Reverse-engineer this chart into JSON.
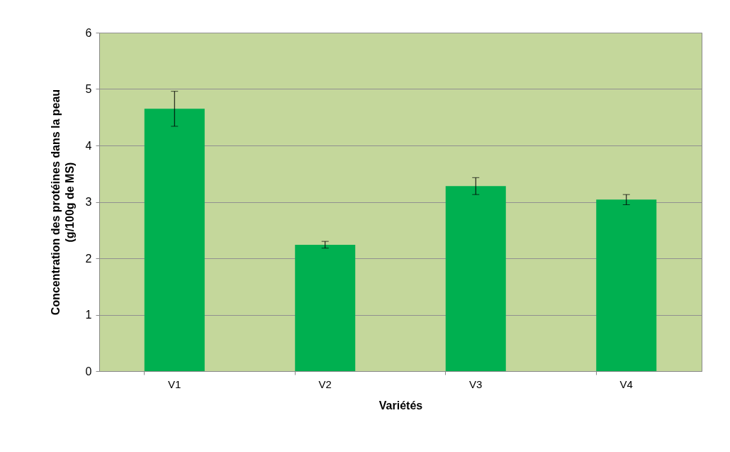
{
  "chart_data": {
    "type": "bar",
    "xlabel": "Variétés",
    "ylabel": "Concentration des protéines dans la peau (g/100g de MS)",
    "categories": [
      "V1",
      "V2",
      "V3",
      "V4"
    ],
    "values": [
      4.65,
      2.24,
      3.28,
      3.04
    ],
    "errors": [
      0.31,
      0.06,
      0.15,
      0.09
    ],
    "color": "#00b050",
    "ylim": [
      0,
      6
    ],
    "yticks": [
      0,
      1,
      2,
      3,
      4,
      5,
      6
    ],
    "grid": "y"
  }
}
